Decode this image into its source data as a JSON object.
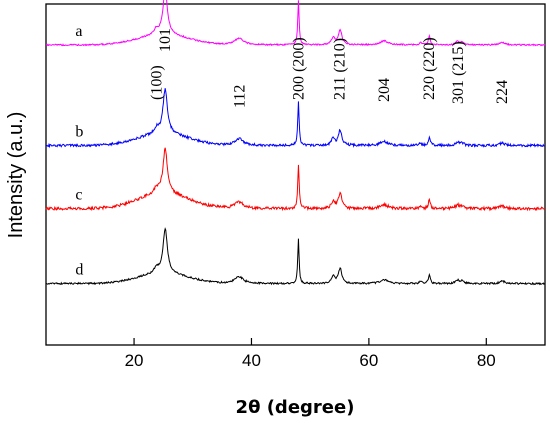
{
  "chart_data": {
    "type": "line",
    "xlabel": "2θ (degree)",
    "ylabel": "Intensity (a.u.)",
    "xlim": [
      5,
      90
    ],
    "x_ticks": [
      20,
      40,
      60,
      80
    ],
    "y_ticks_shown": false,
    "grid": false,
    "legend": "none",
    "peak_labels": [
      {
        "text": "(100)",
        "x": 23.8
      },
      {
        "text": "101",
        "x": 25.3
      },
      {
        "text": "112",
        "x": 38.0
      },
      {
        "text": "200 (200)",
        "x": 48.0
      },
      {
        "text": "211 (210)",
        "x": 55.0
      },
      {
        "text": "204",
        "x": 62.6
      },
      {
        "text": "220 (220)",
        "x": 70.2
      },
      {
        "text": "301 (215)",
        "x": 75.2
      },
      {
        "text": "224",
        "x": 82.7
      }
    ],
    "peaks": [
      {
        "center": 23.8,
        "height": 0.12,
        "width": 0.4
      },
      {
        "center": 25.3,
        "height": 1.0,
        "width": 0.45
      },
      {
        "center": 37.9,
        "height": 0.15,
        "width": 0.9
      },
      {
        "center": 48.0,
        "height": 1.0,
        "width": 0.14
      },
      {
        "center": 53.9,
        "height": 0.16,
        "width": 0.35
      },
      {
        "center": 55.1,
        "height": 0.34,
        "width": 0.35
      },
      {
        "center": 62.6,
        "height": 0.09,
        "width": 0.8
      },
      {
        "center": 68.8,
        "height": 0.05,
        "width": 0.25
      },
      {
        "center": 70.3,
        "height": 0.19,
        "width": 0.2
      },
      {
        "center": 75.1,
        "height": 0.08,
        "width": 0.4
      },
      {
        "center": 75.9,
        "height": 0.05,
        "width": 0.35
      },
      {
        "center": 82.7,
        "height": 0.06,
        "width": 0.5
      }
    ],
    "series": [
      {
        "name": "a",
        "color": "#ff00ff",
        "baseline": 0.12,
        "scale": 0.13,
        "hump": 0.03,
        "noise": 0.004
      },
      {
        "name": "b",
        "color": "#0000ff",
        "baseline": 0.415,
        "scale": 0.13,
        "hump": 0.035,
        "noise": 0.007
      },
      {
        "name": "c",
        "color": "#ff0000",
        "baseline": 0.6,
        "scale": 0.13,
        "hump": 0.045,
        "noise": 0.008
      },
      {
        "name": "d",
        "color": "#000000",
        "baseline": 0.82,
        "scale": 0.13,
        "hump": 0.03,
        "noise": 0.005
      }
    ]
  }
}
